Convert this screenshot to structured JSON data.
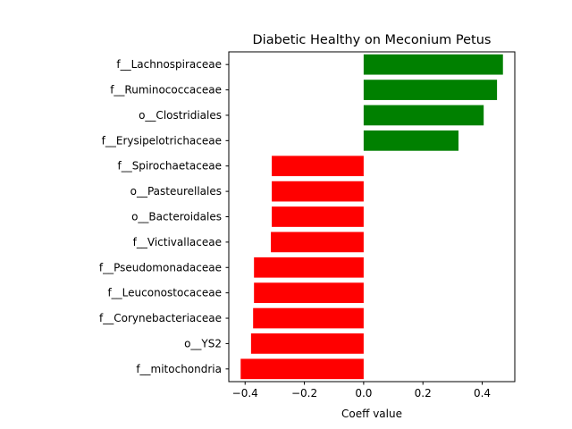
{
  "chart_data": {
    "type": "bar",
    "orientation": "horizontal",
    "title": "Diabetic Healthy on Meconium Petus",
    "xlabel": "Coeff value",
    "ylabel": "",
    "xlim": [
      -0.455,
      0.51
    ],
    "xticks": [
      -0.4,
      -0.2,
      0.0,
      0.2,
      0.4
    ],
    "xtick_labels": [
      "−0.4",
      "−0.2",
      "0.0",
      "0.2",
      "0.4"
    ],
    "grid": false,
    "categories": [
      "f__Lachnospiraceae",
      "f__Ruminococcaceae",
      "o__Clostridiales",
      "f__Erysipelotrichaceae",
      "f__Spirochaetaceae",
      "o__Pasteurellales",
      "o__Bacteroidales",
      "f__Victivallaceae",
      "f__Pseudomonadaceae",
      "f__Leuconostocaceae",
      "f__Corynebacteriaceae",
      "o__YS2",
      "f__mitochondria"
    ],
    "values": [
      0.47,
      0.45,
      0.405,
      0.32,
      -0.31,
      -0.31,
      -0.31,
      -0.313,
      -0.37,
      -0.37,
      -0.373,
      -0.38,
      -0.415
    ],
    "colors": {
      "positive": "#008000",
      "negative": "#ff0000"
    }
  }
}
